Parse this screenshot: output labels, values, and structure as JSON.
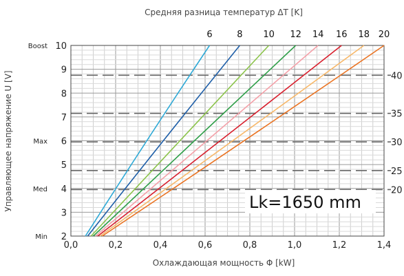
{
  "chart_data": {
    "type": "line",
    "title": "Средняя разница температур ΔT [K]",
    "xlabel": "Охлаждающая мощность  Φ [kW]",
    "ylabel": "Управляющее напряжение  U [V]",
    "xlim": [
      0,
      1.4
    ],
    "ylim": [
      2,
      10
    ],
    "x_ticks": [
      "0,0",
      "0,2",
      "0,4",
      "0,6",
      "0,8",
      "1,0",
      "1,2",
      "1,4"
    ],
    "y_ticks": [
      "2",
      "3",
      "4",
      "5",
      "6",
      "7",
      "8",
      "9",
      "10"
    ],
    "y_level_labels": [
      {
        "v": 2,
        "text": "Min"
      },
      {
        "v": 4,
        "text": "Med"
      },
      {
        "v": 6,
        "text": "Max"
      },
      {
        "v": 10,
        "text": "Boost"
      }
    ],
    "right_axis_labels": [
      {
        "v": 3.95,
        "text": "20"
      },
      {
        "v": 4.75,
        "text": "25"
      },
      {
        "v": 5.95,
        "text": "30"
      },
      {
        "v": 7.15,
        "text": "35"
      },
      {
        "v": 8.75,
        "text": "40"
      }
    ],
    "dashed_levels": [
      3.95,
      4.75,
      5.95,
      7.15,
      8.75
    ],
    "series": [
      {
        "name": "6",
        "color": "#2ea9d6",
        "points": [
          [
            0.065,
            2
          ],
          [
            0.62,
            10
          ]
        ]
      },
      {
        "name": "8",
        "color": "#1f5fa8",
        "points": [
          [
            0.075,
            2
          ],
          [
            0.755,
            10
          ]
        ]
      },
      {
        "name": "10",
        "color": "#8bc34a",
        "points": [
          [
            0.09,
            2
          ],
          [
            0.885,
            10
          ]
        ]
      },
      {
        "name": "12",
        "color": "#2e9e48",
        "points": [
          [
            0.1,
            2
          ],
          [
            1.005,
            10
          ]
        ]
      },
      {
        "name": "14",
        "color": "#f4a0a8",
        "points": [
          [
            0.11,
            2
          ],
          [
            1.105,
            10
          ]
        ]
      },
      {
        "name": "16",
        "color": "#d81e2c",
        "points": [
          [
            0.12,
            2
          ],
          [
            1.21,
            10
          ]
        ]
      },
      {
        "name": "18",
        "color": "#f7b86a",
        "points": [
          [
            0.13,
            2
          ],
          [
            1.31,
            10
          ]
        ]
      },
      {
        "name": "20",
        "color": "#ea7322",
        "points": [
          [
            0.14,
            2
          ],
          [
            1.4,
            10
          ]
        ]
      }
    ],
    "annotation": "Lk=1650 mm",
    "grid": true
  }
}
